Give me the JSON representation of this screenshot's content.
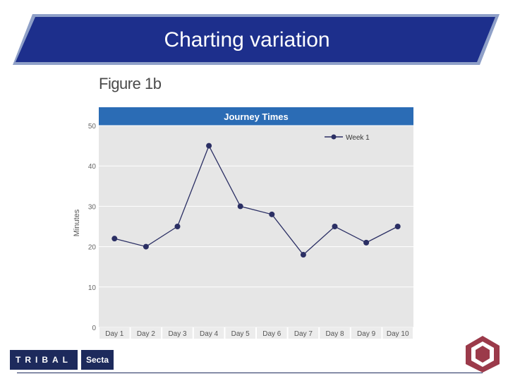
{
  "slide": {
    "title": "Charting variation",
    "figure_label": "Figure 1b"
  },
  "logos": {
    "tribal": "TRIBAL",
    "secta": "Secta"
  },
  "colors": {
    "banner_fill": "#1d2f8c",
    "banner_border": "#8fa0c8",
    "chart_header": "#2b6cb5",
    "plot_bg": "#e6e6e6",
    "series_line": "#2b2f64",
    "logo_bg": "#1d2a5c",
    "emblem": "#9b3a4a"
  },
  "chart_data": {
    "type": "line",
    "title": "Journey Times",
    "xlabel": "",
    "ylabel": "Minutes",
    "categories": [
      "Day 1",
      "Day 2",
      "Day 3",
      "Day 4",
      "Day 5",
      "Day 6",
      "Day 7",
      "Day 8",
      "Day 9",
      "Day 10"
    ],
    "series": [
      {
        "name": "Week 1",
        "values": [
          22,
          20,
          25,
          45,
          30,
          28,
          18,
          25,
          21,
          25
        ]
      }
    ],
    "ylim": [
      0,
      50
    ],
    "yticks": [
      0,
      10,
      20,
      30,
      40,
      50
    ],
    "grid": true,
    "legend_position": "top-right"
  }
}
